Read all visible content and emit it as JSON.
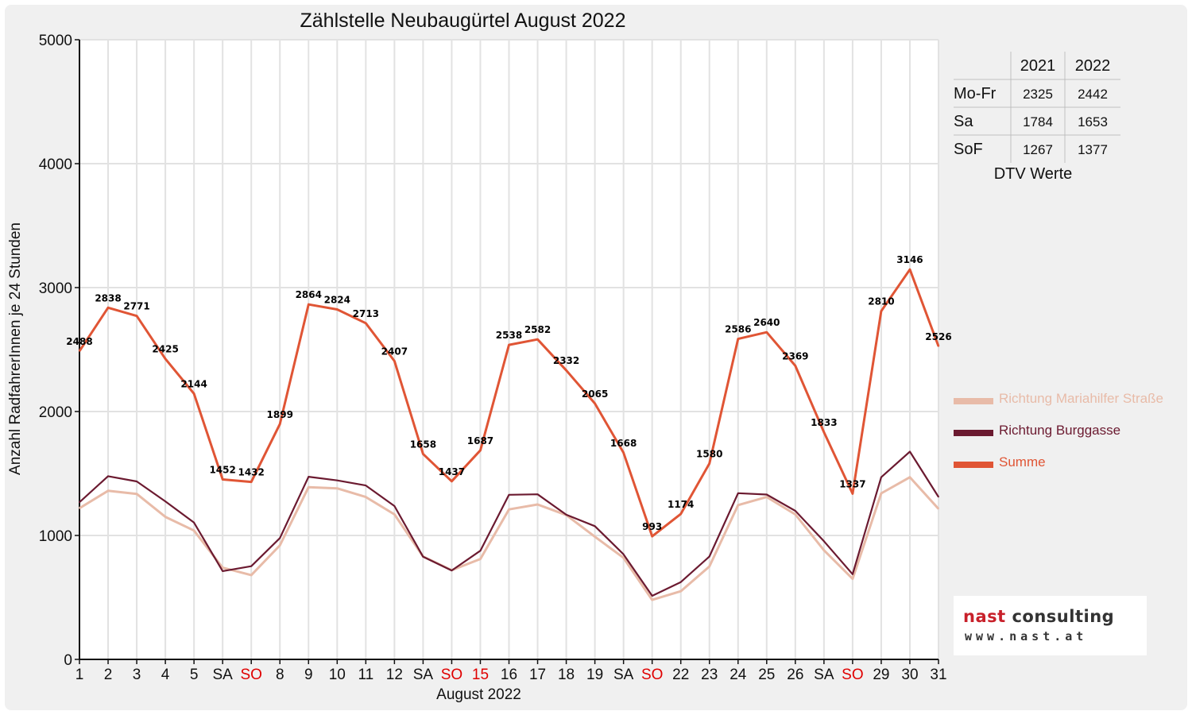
{
  "chart_data": {
    "type": "line",
    "title": "Zählstelle Neubaugürtel August 2022",
    "xlabel": "August 2022",
    "ylabel": "Anzahl RadfahrerInnen je 24 Stunden",
    "ylim": [
      0,
      5000
    ],
    "yticks": [
      "0",
      "1000",
      "2000",
      "3000",
      "4000",
      "5000"
    ],
    "grid": true,
    "legend_position": "right",
    "categories": [
      "1",
      "2",
      "3",
      "4",
      "5",
      "SA",
      "SO",
      "8",
      "9",
      "10",
      "11",
      "12",
      "SA",
      "SO",
      "15",
      "16",
      "17",
      "18",
      "19",
      "SA",
      "SO",
      "22",
      "23",
      "24",
      "25",
      "26",
      "SA",
      "SO",
      "29",
      "30",
      "31"
    ],
    "red_categories": [
      6,
      13,
      14,
      20,
      27
    ],
    "series": [
      {
        "name": "Richtung Mariahilfer Straße",
        "color": "#e8bba8",
        "width": 3,
        "values": [
          1220,
          1360,
          1335,
          1150,
          1040,
          740,
          680,
          920,
          1390,
          1380,
          1310,
          1170,
          830,
          720,
          810,
          1210,
          1250,
          1165,
          990,
          820,
          480,
          550,
          750,
          1245,
          1310,
          1170,
          880,
          650,
          1340,
          1470,
          1215
        ]
      },
      {
        "name": "Richtung Burggasse",
        "color": "#6b1a30",
        "width": 2.2,
        "values": [
          1268,
          1478,
          1436,
          1275,
          1104,
          712,
          752,
          979,
          1474,
          1444,
          1403,
          1237,
          828,
          717,
          877,
          1328,
          1332,
          1167,
          1075,
          848,
          513,
          624,
          830,
          1341,
          1330,
          1199,
          953,
          687,
          1470,
          1676,
          1311
        ]
      },
      {
        "name": "Summe",
        "color": "#e05535",
        "width": 3,
        "values": [
          2488,
          2838,
          2771,
          2425,
          2144,
          1452,
          1432,
          1899,
          2864,
          2824,
          2713,
          2407,
          1658,
          1437,
          1687,
          2538,
          2582,
          2332,
          2065,
          1668,
          993,
          1174,
          1580,
          2586,
          2640,
          2369,
          1833,
          1337,
          2810,
          3146,
          2526
        ]
      }
    ],
    "data_labels": [
      "2488",
      "2838",
      "2771",
      "2425",
      "2144",
      "1452",
      "1432",
      "1899",
      "2864",
      "2824",
      "2713",
      "2407",
      "1658",
      "1437",
      "1687",
      "2538",
      "2582",
      "2332",
      "2065",
      "1668",
      "993",
      "1174",
      "1580",
      "2586",
      "2640",
      "2369",
      "1833",
      "1337",
      "2810",
      "3146",
      "2526"
    ]
  },
  "dtv_table": {
    "caption": "DTV Werte",
    "headers": [
      "",
      "2021",
      "2022"
    ],
    "rows": [
      [
        "Mo-Fr",
        "2325",
        "2442"
      ],
      [
        "Sa",
        "1784",
        "1653"
      ],
      [
        "SoF",
        "1267",
        "1377"
      ]
    ]
  },
  "logo": {
    "brand_red": "nast",
    "brand_rest": "consulting",
    "url": "www.nast.at"
  },
  "colors": {
    "holiday_label": "#e00000",
    "axis": "#111111",
    "grid": "#e2e2e2",
    "frame_bg": "#f0f0f0"
  }
}
